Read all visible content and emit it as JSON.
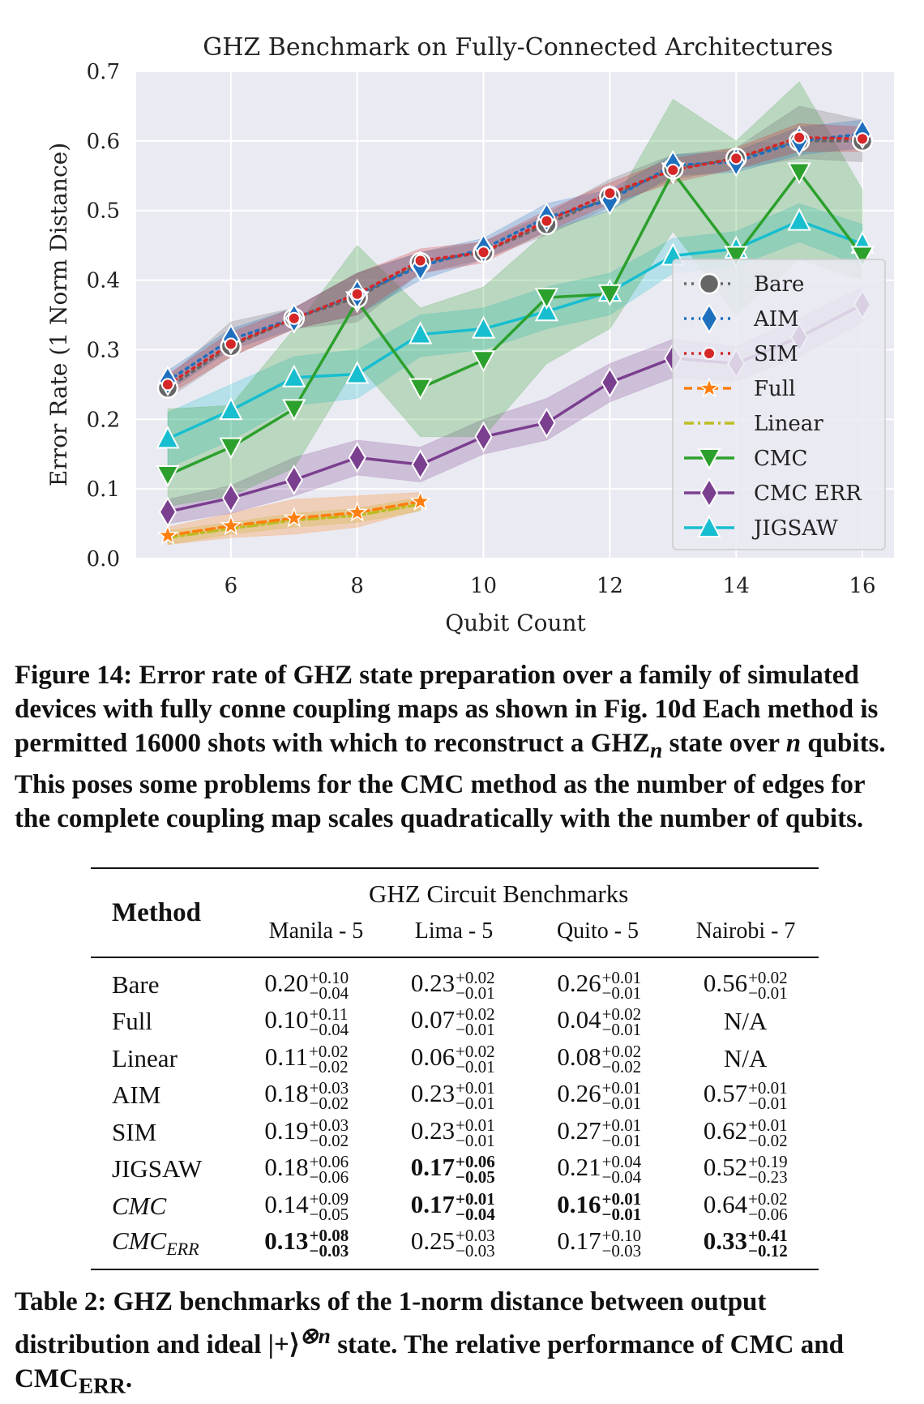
{
  "chart_data": {
    "type": "line",
    "title": "GHZ Benchmark on Fully-Connected Architectures",
    "xlabel": "Qubit Count",
    "ylabel": "Error Rate (1 Norm Distance)",
    "xlim": [
      4.5,
      16.5
    ],
    "ylim": [
      0.0,
      0.7
    ],
    "xticks": [
      6,
      8,
      10,
      12,
      14,
      16
    ],
    "yticks": [
      0.0,
      0.1,
      0.2,
      0.3,
      0.4,
      0.5,
      0.6,
      0.7
    ],
    "grid": true,
    "legend_position": "lower-right",
    "series": [
      {
        "name": "Bare",
        "color": "#666666",
        "marker": "circle",
        "linestyle": "dotted",
        "x": [
          5,
          6,
          7,
          8,
          9,
          10,
          11,
          12,
          13,
          14,
          15,
          16
        ],
        "y": [
          0.245,
          0.305,
          0.345,
          0.375,
          0.425,
          0.44,
          0.48,
          0.52,
          0.56,
          0.575,
          0.6,
          0.6
        ],
        "band": [
          [
            0.23,
            0.26
          ],
          [
            0.29,
            0.34
          ],
          [
            0.33,
            0.36
          ],
          [
            0.34,
            0.41
          ],
          [
            0.41,
            0.44
          ],
          [
            0.43,
            0.455
          ],
          [
            0.465,
            0.495
          ],
          [
            0.505,
            0.545
          ],
          [
            0.545,
            0.58
          ],
          [
            0.56,
            0.59
          ],
          [
            0.575,
            0.65
          ],
          [
            0.57,
            0.63
          ]
        ]
      },
      {
        "name": "AIM",
        "color": "#1f6fbf",
        "marker": "diamond",
        "linestyle": "dotted",
        "x": [
          5,
          6,
          7,
          8,
          9,
          10,
          11,
          12,
          13,
          14,
          15,
          16
        ],
        "y": [
          0.255,
          0.315,
          0.345,
          0.38,
          0.42,
          0.445,
          0.49,
          0.515,
          0.565,
          0.57,
          0.6,
          0.61
        ],
        "band": [
          [
            0.24,
            0.27
          ],
          [
            0.3,
            0.33
          ],
          [
            0.33,
            0.36
          ],
          [
            0.35,
            0.41
          ],
          [
            0.4,
            0.44
          ],
          [
            0.43,
            0.46
          ],
          [
            0.47,
            0.51
          ],
          [
            0.5,
            0.53
          ],
          [
            0.55,
            0.58
          ],
          [
            0.555,
            0.585
          ],
          [
            0.58,
            0.62
          ],
          [
            0.59,
            0.63
          ]
        ]
      },
      {
        "name": "SIM",
        "color": "#d62728",
        "marker": "dot",
        "linestyle": "dotted",
        "x": [
          5,
          6,
          7,
          8,
          9,
          10,
          11,
          12,
          13,
          14,
          15,
          16
        ],
        "y": [
          0.25,
          0.308,
          0.345,
          0.38,
          0.428,
          0.44,
          0.485,
          0.525,
          0.558,
          0.575,
          0.605,
          0.603
        ],
        "band": [
          [
            0.235,
            0.265
          ],
          [
            0.29,
            0.325
          ],
          [
            0.33,
            0.36
          ],
          [
            0.35,
            0.41
          ],
          [
            0.41,
            0.445
          ],
          [
            0.425,
            0.455
          ],
          [
            0.47,
            0.5
          ],
          [
            0.51,
            0.54
          ],
          [
            0.54,
            0.575
          ],
          [
            0.56,
            0.59
          ],
          [
            0.585,
            0.625
          ],
          [
            0.585,
            0.62
          ]
        ]
      },
      {
        "name": "Full",
        "color": "#ff7f0e",
        "marker": "star",
        "linestyle": "dashed",
        "x": [
          5,
          6,
          7,
          8,
          9
        ],
        "y": [
          0.033,
          0.047,
          0.058,
          0.066,
          0.082
        ],
        "band": [
          [
            0.02,
            0.045
          ],
          [
            0.03,
            0.065
          ],
          [
            0.035,
            0.085
          ],
          [
            0.045,
            0.09
          ],
          [
            0.07,
            0.095
          ]
        ]
      },
      {
        "name": "Linear",
        "color": "#bcbd22",
        "marker": "none",
        "linestyle": "dashdot",
        "x": [
          5,
          6,
          7,
          8,
          9
        ],
        "y": [
          0.03,
          0.043,
          0.055,
          0.062,
          0.078
        ],
        "band": [
          [
            0.02,
            0.04
          ],
          [
            0.035,
            0.052
          ],
          [
            0.045,
            0.065
          ],
          [
            0.052,
            0.072
          ],
          [
            0.068,
            0.088
          ]
        ]
      },
      {
        "name": "CMC",
        "color": "#2ca02c",
        "marker": "triangle-down",
        "linestyle": "solid",
        "x": [
          5,
          6,
          7,
          8,
          9,
          10,
          11,
          12,
          13,
          14,
          15,
          16
        ],
        "y": [
          0.12,
          0.16,
          0.215,
          0.37,
          0.245,
          0.285,
          0.375,
          0.38,
          0.555,
          0.435,
          0.555,
          0.435
        ],
        "band": [
          [
            0.075,
            0.215
          ],
          [
            0.09,
            0.22
          ],
          [
            0.13,
            0.33
          ],
          [
            0.28,
            0.45
          ],
          [
            0.175,
            0.36
          ],
          [
            0.175,
            0.39
          ],
          [
            0.28,
            0.47
          ],
          [
            0.33,
            0.5
          ],
          [
            0.47,
            0.66
          ],
          [
            0.35,
            0.6
          ],
          [
            0.43,
            0.685
          ],
          [
            0.4,
            0.53
          ]
        ]
      },
      {
        "name": "CMC ERR",
        "color": "#7b3f8f",
        "marker": "diamond",
        "linestyle": "solid",
        "x": [
          5,
          6,
          7,
          8,
          9,
          10,
          11,
          12,
          13,
          14,
          15,
          16
        ],
        "y": [
          0.067,
          0.087,
          0.113,
          0.145,
          0.135,
          0.175,
          0.195,
          0.253,
          0.288,
          0.28,
          0.318,
          0.365
        ],
        "band": [
          [
            0.05,
            0.085
          ],
          [
            0.065,
            0.105
          ],
          [
            0.09,
            0.145
          ],
          [
            0.12,
            0.17
          ],
          [
            0.11,
            0.16
          ],
          [
            0.15,
            0.2
          ],
          [
            0.17,
            0.23
          ],
          [
            0.225,
            0.28
          ],
          [
            0.26,
            0.315
          ],
          [
            0.255,
            0.305
          ],
          [
            0.29,
            0.345
          ],
          [
            0.34,
            0.39
          ]
        ]
      },
      {
        "name": "JIGSAW",
        "color": "#17becf",
        "marker": "triangle-up",
        "linestyle": "solid",
        "x": [
          5,
          6,
          7,
          8,
          9,
          10,
          11,
          12,
          13,
          14,
          15,
          16
        ],
        "y": [
          0.172,
          0.213,
          0.26,
          0.265,
          0.322,
          0.33,
          0.355,
          0.383,
          0.435,
          0.445,
          0.485,
          0.452
        ],
        "band": [
          [
            0.13,
            0.21
          ],
          [
            0.17,
            0.25
          ],
          [
            0.22,
            0.29
          ],
          [
            0.23,
            0.3
          ],
          [
            0.29,
            0.35
          ],
          [
            0.3,
            0.36
          ],
          [
            0.33,
            0.39
          ],
          [
            0.35,
            0.41
          ],
          [
            0.41,
            0.46
          ],
          [
            0.42,
            0.47
          ],
          [
            0.455,
            0.51
          ],
          [
            0.42,
            0.48
          ]
        ]
      }
    ]
  },
  "figure_caption": {
    "label": "Figure 14:",
    "text": "Error rate of GHZ state preparation over a family of simulated devices with fully conne coupling maps as shown in Fig. 10d Each method is permitted 16000 shots with which to reconstruct a GHZ",
    "sub": "n",
    "text2": " state over ",
    "var": "n",
    "text3": " qubits. This poses some problems for the CMC method as the number of edges for the complete coupling map scales quadratically with the number of qubits."
  },
  "table": {
    "method_header": "Method",
    "group_header": "GHZ Circuit Benchmarks",
    "columns": [
      "Manila - 5",
      "Lima - 5",
      "Quito - 5",
      "Nairobi - 7"
    ],
    "rows": [
      {
        "method": "Bare",
        "italic": false,
        "cells": [
          {
            "v": "0.20",
            "p": "+0.10",
            "m": "−0.04",
            "b": false
          },
          {
            "v": "0.23",
            "p": "+0.02",
            "m": "−0.01",
            "b": false
          },
          {
            "v": "0.26",
            "p": "+0.01",
            "m": "−0.01",
            "b": false
          },
          {
            "v": "0.56",
            "p": "+0.02",
            "m": "−0.01",
            "b": false
          }
        ]
      },
      {
        "method": "Full",
        "italic": false,
        "cells": [
          {
            "v": "0.10",
            "p": "+0.11",
            "m": "−0.04",
            "b": false
          },
          {
            "v": "0.07",
            "p": "+0.02",
            "m": "−0.01",
            "b": false
          },
          {
            "v": "0.04",
            "p": "+0.02",
            "m": "−0.01",
            "b": false
          },
          {
            "v": "N/A",
            "p": "",
            "m": "",
            "b": false
          }
        ]
      },
      {
        "method": "Linear",
        "italic": false,
        "cells": [
          {
            "v": "0.11",
            "p": "+0.02",
            "m": "−0.02",
            "b": false
          },
          {
            "v": "0.06",
            "p": "+0.02",
            "m": "−0.01",
            "b": false
          },
          {
            "v": "0.08",
            "p": "+0.02",
            "m": "−0.02",
            "b": false
          },
          {
            "v": "N/A",
            "p": "",
            "m": "",
            "b": false
          }
        ]
      },
      {
        "method": "AIM",
        "italic": false,
        "cells": [
          {
            "v": "0.18",
            "p": "+0.03",
            "m": "−0.02",
            "b": false
          },
          {
            "v": "0.23",
            "p": "+0.01",
            "m": "−0.01",
            "b": false
          },
          {
            "v": "0.26",
            "p": "+0.01",
            "m": "−0.01",
            "b": false
          },
          {
            "v": "0.57",
            "p": "+0.01",
            "m": "−0.01",
            "b": false
          }
        ]
      },
      {
        "method": "SIM",
        "italic": false,
        "cells": [
          {
            "v": "0.19",
            "p": "+0.03",
            "m": "−0.02",
            "b": false
          },
          {
            "v": "0.23",
            "p": "+0.01",
            "m": "−0.01",
            "b": false
          },
          {
            "v": "0.27",
            "p": "+0.01",
            "m": "−0.01",
            "b": false
          },
          {
            "v": "0.62",
            "p": "+0.01",
            "m": "−0.02",
            "b": false
          }
        ]
      },
      {
        "method": "JIGSAW",
        "italic": false,
        "cells": [
          {
            "v": "0.18",
            "p": "+0.06",
            "m": "−0.06",
            "b": false
          },
          {
            "v": "0.17",
            "p": "+0.06",
            "m": "−0.05",
            "b": true
          },
          {
            "v": "0.21",
            "p": "+0.04",
            "m": "−0.04",
            "b": false
          },
          {
            "v": "0.52",
            "p": "+0.19",
            "m": "−0.23",
            "b": false
          }
        ]
      },
      {
        "method": "CMC",
        "italic": true,
        "cells": [
          {
            "v": "0.14",
            "p": "+0.09",
            "m": "−0.05",
            "b": false
          },
          {
            "v": "0.17",
            "p": "+0.01",
            "m": "−0.04",
            "b": true
          },
          {
            "v": "0.16",
            "p": "+0.01",
            "m": "−0.01",
            "b": true
          },
          {
            "v": "0.64",
            "p": "+0.02",
            "m": "−0.06",
            "b": false
          }
        ]
      },
      {
        "method": "CMC",
        "method_sub": "ERR",
        "italic": true,
        "cells": [
          {
            "v": "0.13",
            "p": "+0.08",
            "m": "−0.03",
            "b": true
          },
          {
            "v": "0.25",
            "p": "+0.03",
            "m": "−0.03",
            "b": false
          },
          {
            "v": "0.17",
            "p": "+0.10",
            "m": "−0.03",
            "b": false
          },
          {
            "v": "0.33",
            "p": "+0.41",
            "m": "−0.12",
            "b": true
          }
        ]
      }
    ]
  },
  "table_caption": {
    "label": "Table 2:",
    "text": "GHZ benchmarks of the 1-norm distance between output distribution and ideal |+⟩",
    "sup": "⊗n",
    "text2": " state. The relative performance of CMC and CMC",
    "sub": "ERR",
    "text3": "."
  }
}
